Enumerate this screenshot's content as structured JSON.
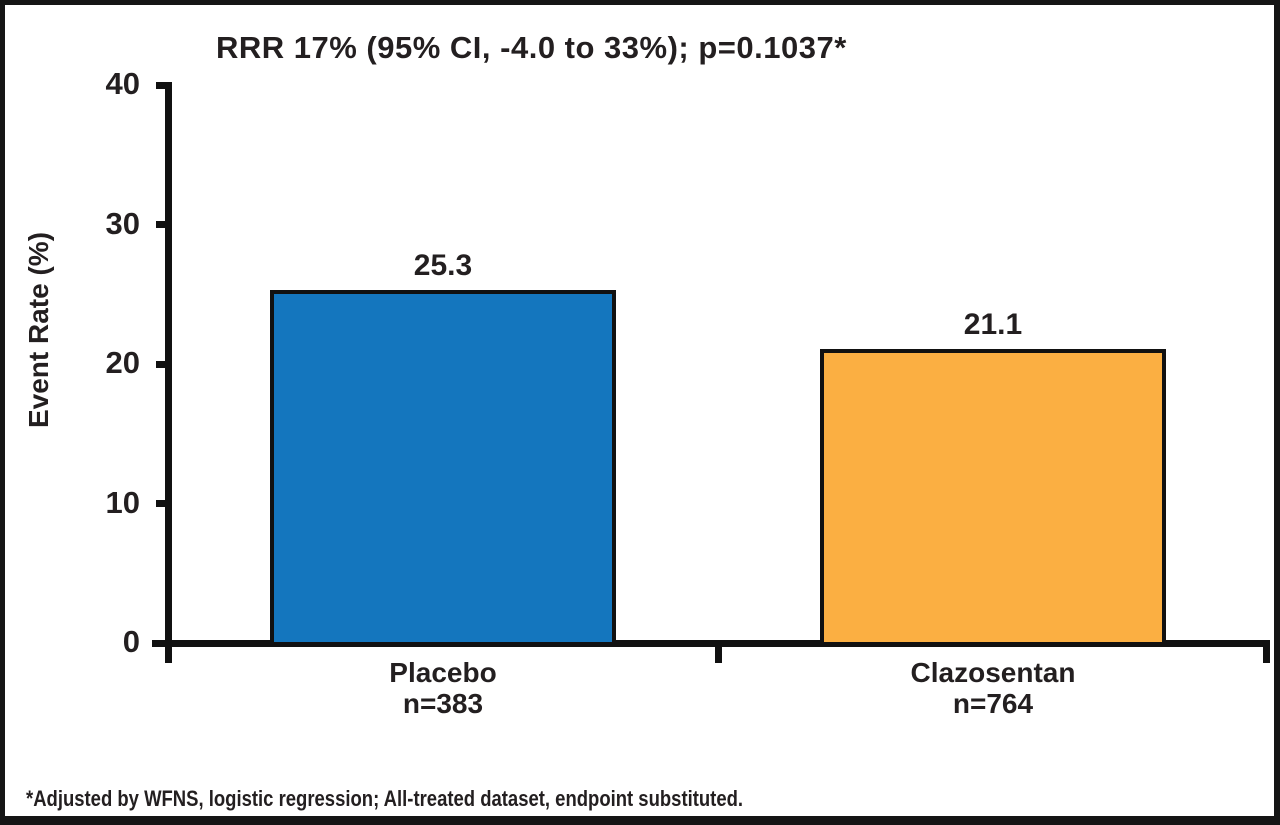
{
  "chart_data": {
    "type": "bar",
    "title": "RRR 17% (95% CI, -4.0 to 33%); p=0.1037*",
    "ylabel": "Event Rate (%)",
    "xlabel": "",
    "ylim": [
      0,
      40
    ],
    "yticks": [
      0,
      10,
      20,
      30,
      40
    ],
    "categories": [
      "Placebo",
      "Clazosentan"
    ],
    "category_sublabels": [
      "n=383",
      "n=764"
    ],
    "values": [
      25.3,
      21.1
    ],
    "value_labels": [
      "25.3",
      "21.1"
    ],
    "bar_colors": [
      "#1476BE",
      "#FBAF42"
    ],
    "bar_border_color": "#111111",
    "grid": "off",
    "legend": "none",
    "footnote": "*Adjusted by WFNS, logistic regression; All-treated dataset, endpoint substituted."
  }
}
